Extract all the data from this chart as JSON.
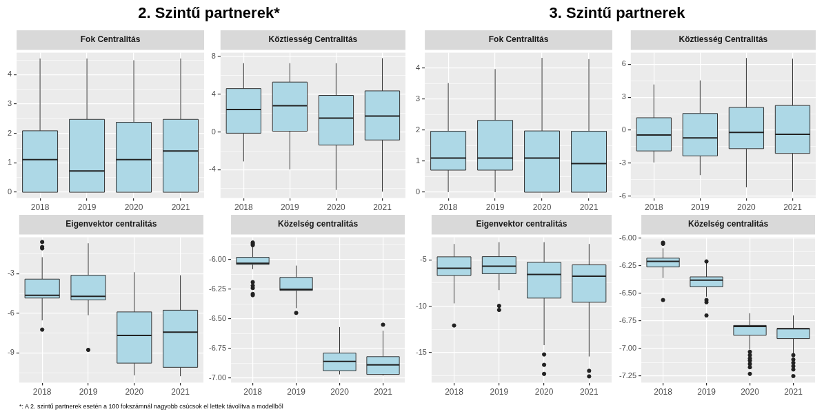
{
  "chart_data": [
    {
      "type": "box",
      "title": "Fok Centralitás",
      "annotations": [
        "2. Szintű partnerek*",
        "*: A 2. szintű partnerek esetén a 100 fokszámnál nagyobb csúcsok el lettek távolítva a modellből"
      ],
      "categories": [
        "2018",
        "2019",
        "2020",
        "2021"
      ],
      "color": "#add8e6",
      "grid": true,
      "marker": "circle",
      "ylim": [
        -0.2,
        4.75
      ],
      "yticks": [
        0,
        {
          "value": 0.5,
          "label": null
        },
        1,
        {
          "value": 1.5,
          "label": null
        },
        2,
        {
          "value": 2.5,
          "label": null
        },
        3,
        {
          "value": 3.5,
          "label": null
        },
        4,
        {
          "value": 4.5,
          "label": null
        }
      ],
      "boxes": [
        {
          "low": 0,
          "q1": 0,
          "median": 1.11,
          "q3": 2.09,
          "high": 4.55
        },
        {
          "low": 0,
          "q1": 0,
          "median": 0.72,
          "q3": 2.48,
          "high": 4.55
        },
        {
          "low": 0,
          "q1": 0,
          "median": 1.11,
          "q3": 2.38,
          "high": 4.49
        },
        {
          "low": 0,
          "q1": 0,
          "median": 1.4,
          "q3": 2.48,
          "high": 4.55
        }
      ]
    },
    {
      "type": "box",
      "title": "Köztiesség Centralitás",
      "categories": [
        "2018",
        "2019",
        "2020",
        "2021"
      ],
      "color": "#add8e6",
      "grid": true,
      "marker": "circle",
      "ylim": [
        -7,
        8.4
      ],
      "yticks": [
        {
          "value": -6,
          "label": null
        },
        -4,
        {
          "value": -2,
          "label": null
        },
        0,
        {
          "value": 2,
          "label": null
        },
        4,
        {
          "value": 6,
          "label": null
        },
        8
      ],
      "boxes": [
        {
          "low": -3.12,
          "q1": -0.13,
          "median": 2.37,
          "q3": 4.59,
          "high": 7.28
        },
        {
          "low": -3.97,
          "q1": 0.08,
          "median": 2.77,
          "q3": 5.28,
          "high": 7.28
        },
        {
          "low": -6.13,
          "q1": -1.39,
          "median": 1.47,
          "q3": 3.87,
          "high": 7.28
        },
        {
          "low": -6.32,
          "q1": -0.85,
          "median": 1.68,
          "q3": 4.35,
          "high": 7.81
        }
      ]
    },
    {
      "type": "box",
      "title": "Eigenvektor centralitás",
      "categories": [
        "2018",
        "2019",
        "2020",
        "2021"
      ],
      "color": "#add8e6",
      "grid": true,
      "marker": "circle",
      "ylim": [
        -11.25,
        -0.25
      ],
      "yticks": [
        {
          "value": -10.5,
          "label": null
        },
        -9,
        {
          "value": -7.5,
          "label": null
        },
        -6,
        {
          "value": -4.5,
          "label": null
        },
        -3,
        {
          "value": -1.5,
          "label": null
        }
      ],
      "boxes": [
        {
          "low": -6.54,
          "q1": -4.85,
          "median": -4.64,
          "q3": -3.42,
          "high": -1.76,
          "outliers": [
            -0.61,
            -0.99,
            -1.09,
            -7.24
          ]
        },
        {
          "low": -6.15,
          "q1": -4.99,
          "median": -4.72,
          "q3": -3.13,
          "high": -0.71,
          "outliers": [
            -8.77
          ]
        },
        {
          "low": -10.7,
          "q1": -9.77,
          "median": -7.68,
          "q3": -5.9,
          "high": -2.9
        },
        {
          "low": -10.76,
          "q1": -10.09,
          "median": -7.43,
          "q3": -5.77,
          "high": -3.13
        }
      ]
    },
    {
      "type": "box",
      "title": "Közelség centralitás",
      "categories": [
        "2018",
        "2019",
        "2020",
        "2021"
      ],
      "color": "#add8e6",
      "grid": true,
      "marker": "circle",
      "ylim": [
        -7.04,
        -5.81
      ],
      "yticks": [
        {
          "value": -7,
          "label": "-7.00"
        },
        {
          "value": -6.875,
          "label": null
        },
        {
          "value": -6.75,
          "label": "-6.75"
        },
        {
          "value": -6.625,
          "label": null
        },
        {
          "value": -6.5,
          "label": "-6.50"
        },
        {
          "value": -6.375,
          "label": null
        },
        {
          "value": -6.25,
          "label": "-6.25"
        },
        {
          "value": -6.125,
          "label": null
        },
        {
          "value": -6,
          "label": "-6.00"
        },
        {
          "value": -5.875,
          "label": null
        }
      ],
      "boxes": [
        {
          "low": -6.08,
          "q1": -6.04,
          "median": -6.03,
          "q3": -5.98,
          "high": -5.89,
          "outliers": [
            -5.855,
            -5.866,
            -5.877,
            -6.19,
            -6.22,
            -6.24,
            -6.29,
            -6.3
          ]
        },
        {
          "low": -6.41,
          "q1": -6.26,
          "median": -6.25,
          "q3": -6.15,
          "high": -6.05,
          "outliers": [
            -6.45
          ]
        },
        {
          "low": -6.97,
          "q1": -6.94,
          "median": -6.86,
          "q3": -6.79,
          "high": -6.57
        },
        {
          "low": -6.98,
          "q1": -6.97,
          "median": -6.89,
          "q3": -6.82,
          "high": -6.6,
          "outliers": [
            -6.55
          ]
        }
      ]
    },
    {
      "type": "box",
      "title": "Fok Centralitás",
      "annotations": [
        "3. Szintű partnerek"
      ],
      "categories": [
        "2018",
        "2019",
        "2020",
        "2021"
      ],
      "color": "#add8e6",
      "grid": true,
      "marker": "circle",
      "ylim": [
        -0.19,
        4.49
      ],
      "yticks": [
        0,
        {
          "value": 0.5,
          "label": null
        },
        1,
        {
          "value": 1.5,
          "label": null
        },
        2,
        {
          "value": 2.5,
          "label": null
        },
        3,
        {
          "value": 3.5,
          "label": null
        },
        4
      ],
      "boxes": [
        {
          "low": 0,
          "q1": 0.71,
          "median": 1.1,
          "q3": 1.96,
          "high": 3.51
        },
        {
          "low": 0,
          "q1": 0.71,
          "median": 1.1,
          "q3": 2.31,
          "high": 3.96
        },
        {
          "low": 0,
          "q1": 0,
          "median": 1.1,
          "q3": 1.97,
          "high": 4.32
        },
        {
          "low": 0,
          "q1": 0,
          "median": 0.92,
          "q3": 1.96,
          "high": 4.28
        }
      ]
    },
    {
      "type": "box",
      "title": "Köztiesség Centralitás",
      "categories": [
        "2018",
        "2019",
        "2020",
        "2021"
      ],
      "color": "#add8e6",
      "grid": true,
      "marker": "circle",
      "ylim": [
        -6.18,
        7.06
      ],
      "yticks": [
        -6,
        {
          "value": -4.5,
          "label": null
        },
        -3,
        {
          "value": -1.5,
          "label": null
        },
        0,
        {
          "value": 1.5,
          "label": null
        },
        3,
        {
          "value": 4.5,
          "label": null
        },
        6
      ],
      "boxes": [
        {
          "low": -2.94,
          "q1": -1.89,
          "median": -0.44,
          "q3": 1.13,
          "high": 4.16
        },
        {
          "low": -4.09,
          "q1": -2.34,
          "median": -0.71,
          "q3": 1.52,
          "high": 4.53
        },
        {
          "low": -5.2,
          "q1": -1.68,
          "median": -0.21,
          "q3": 2.07,
          "high": 6.57
        },
        {
          "low": -5.61,
          "q1": -2.11,
          "median": -0.37,
          "q3": 2.25,
          "high": 6.51
        }
      ]
    },
    {
      "type": "box",
      "title": "Eigenvektor centralitás",
      "categories": [
        "2018",
        "2019",
        "2020",
        "2021"
      ],
      "color": "#add8e6",
      "grid": true,
      "marker": "circle",
      "ylim": [
        -18.27,
        -2.55
      ],
      "yticks": [
        {
          "value": -17.5,
          "label": null
        },
        -15,
        {
          "value": -12.5,
          "label": null
        },
        -10,
        {
          "value": -7.5,
          "label": null
        },
        -5
      ],
      "boxes": [
        {
          "low": -9.7,
          "q1": -6.69,
          "median": -5.9,
          "q3": -4.67,
          "high": -3.28,
          "outliers": [
            -12.09
          ]
        },
        {
          "low": -8.27,
          "q1": -6.5,
          "median": -5.68,
          "q3": -4.65,
          "high": -3.09,
          "outliers": [
            -9.97,
            -10.41
          ]
        },
        {
          "low": -14.21,
          "q1": -9.13,
          "median": -6.58,
          "q3": -5.27,
          "high": -3.09,
          "outliers": [
            -15.22,
            -16.34,
            -17.32
          ]
        },
        {
          "low": -15.44,
          "q1": -9.58,
          "median": -6.77,
          "q3": -5.54,
          "high": -3.28,
          "outliers": [
            -16.99,
            -17.59
          ]
        }
      ]
    },
    {
      "type": "box",
      "title": "Közelség centralitás",
      "categories": [
        "2018",
        "2019",
        "2020",
        "2021"
      ],
      "color": "#add8e6",
      "grid": true,
      "marker": "circle",
      "ylim": [
        -7.31,
        -5.99
      ],
      "yticks": [
        {
          "value": -7.25,
          "label": "-7.25"
        },
        {
          "value": -7.125,
          "label": null
        },
        {
          "value": -7,
          "label": "-7.00"
        },
        {
          "value": -6.875,
          "label": null
        },
        {
          "value": -6.75,
          "label": "-6.75"
        },
        {
          "value": -6.625,
          "label": null
        },
        {
          "value": -6.5,
          "label": "-6.50"
        },
        {
          "value": -6.375,
          "label": null
        },
        {
          "value": -6.25,
          "label": "-6.25"
        },
        {
          "value": -6.125,
          "label": null
        },
        {
          "value": -6,
          "label": "-6.00"
        }
      ],
      "boxes": [
        {
          "low": -6.36,
          "q1": -6.26,
          "median": -6.21,
          "q3": -6.18,
          "high": -6.09,
          "outliers": [
            -6.04,
            -6.05,
            -6.56
          ]
        },
        {
          "low": -6.53,
          "q1": -6.44,
          "median": -6.38,
          "q3": -6.35,
          "high": -6.22,
          "outliers": [
            -6.21,
            -6.56,
            -6.58,
            -6.7
          ]
        },
        {
          "low": -7.01,
          "q1": -6.88,
          "median": -6.8,
          "q3": -6.79,
          "high": -6.68,
          "outliers": [
            -7.03,
            -7.06,
            -7.09,
            -7.11,
            -7.14,
            -7.17,
            -7.23
          ]
        },
        {
          "low": -7.05,
          "q1": -6.91,
          "median": -6.82,
          "q3": -6.82,
          "high": -6.7,
          "outliers": [
            -7.06,
            -7.1,
            -7.13,
            -7.16,
            -7.19,
            -7.25
          ]
        }
      ]
    }
  ]
}
